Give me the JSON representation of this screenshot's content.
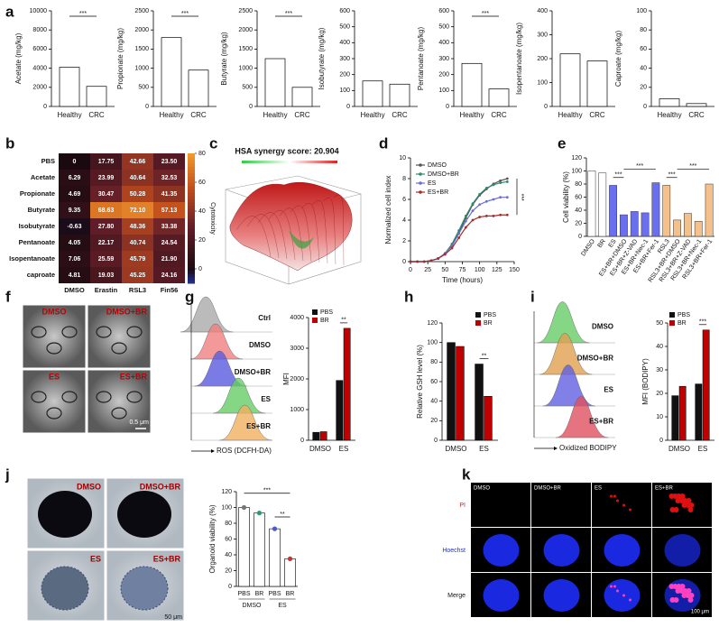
{
  "panel_labels": [
    "a",
    "b",
    "c",
    "d",
    "e",
    "f",
    "g",
    "h",
    "i",
    "j",
    "k"
  ],
  "a": {
    "groups": [
      "Healthy",
      "CRC"
    ],
    "colors": [
      "#111111",
      "#b22222"
    ],
    "plots": [
      {
        "ylabel": "Acetate (mg/kg)",
        "ylim": [
          0,
          10000
        ],
        "yticks": [
          0,
          2000,
          4000,
          6000,
          8000,
          10000
        ],
        "means": [
          4100,
          2100
        ],
        "sig": "***"
      },
      {
        "ylabel": "Propionate (mg/kg)",
        "ylim": [
          0,
          2500
        ],
        "yticks": [
          0,
          500,
          1000,
          1500,
          2000,
          2500
        ],
        "means": [
          1800,
          950
        ],
        "sig": "***"
      },
      {
        "ylabel": "Butyrate (mg/kg)",
        "ylim": [
          0,
          2500
        ],
        "yticks": [
          0,
          500,
          1000,
          1500,
          2000,
          2500
        ],
        "means": [
          1250,
          500
        ],
        "sig": "***"
      },
      {
        "ylabel": "Isobutyrate (mg/kg)",
        "ylim": [
          0,
          600
        ],
        "yticks": [
          0,
          100,
          200,
          300,
          400,
          500,
          600
        ],
        "means": [
          160,
          140
        ]
      },
      {
        "ylabel": "Pentanoate (mg/kg)",
        "ylim": [
          0,
          600
        ],
        "yticks": [
          0,
          100,
          200,
          300,
          400,
          500,
          600
        ],
        "means": [
          270,
          110
        ],
        "sig": "***"
      },
      {
        "ylabel": "Isopentanoate (mg/kg)",
        "ylim": [
          0,
          400
        ],
        "yticks": [
          0,
          100,
          200,
          300,
          400
        ],
        "means": [
          220,
          190
        ]
      },
      {
        "ylabel": "Caproate (mg/kg)",
        "ylim": [
          0,
          100
        ],
        "yticks": [
          0,
          20,
          40,
          60,
          80,
          100
        ],
        "means": [
          8,
          3
        ]
      }
    ]
  },
  "b": {
    "rows": [
      "PBS",
      "Acetate",
      "Propionate",
      "Butyrate",
      "Isobutyrate",
      "Pentanoate",
      "Isopentanoate",
      "caproate"
    ],
    "columns": [
      "DMSO",
      "Erastin",
      "RSL3",
      "Fin56"
    ],
    "values": [
      [
        "0",
        "17.75",
        "42.66",
        "23.50"
      ],
      [
        "6.29",
        "23.99",
        "40.64",
        "32.53"
      ],
      [
        "4.69",
        "30.47",
        "50.28",
        "41.35"
      ],
      [
        "9.35",
        "68.63",
        "72.10",
        "57.13"
      ],
      [
        "-0.63",
        "27.80",
        "48.36",
        "33.38"
      ],
      [
        "4.05",
        "22.17",
        "40.74",
        "24.54"
      ],
      [
        "7.06",
        "25.59",
        "45.79",
        "21.90"
      ],
      [
        "4.81",
        "19.03",
        "45.25",
        "24.16"
      ]
    ],
    "colorbar": {
      "label": "Cytotoxicity",
      "lim": [
        -10,
        80
      ],
      "ticks": [
        0,
        20,
        40,
        60,
        80
      ]
    }
  },
  "c": {
    "title": "HSA synergy score: 20.904"
  },
  "d": {
    "xlabel": "Time (hours)",
    "ylabel": "Normalized cell index",
    "xlim": [
      0,
      150
    ],
    "xticks": [
      0,
      25,
      50,
      75,
      100,
      125,
      150
    ],
    "ylim": [
      0,
      10
    ],
    "yticks": [
      0,
      2,
      4,
      6,
      8,
      10
    ],
    "x": [
      0,
      10,
      20,
      30,
      40,
      50,
      60,
      70,
      80,
      90,
      100,
      110,
      120,
      130,
      140
    ],
    "series": [
      {
        "name": "DMSO",
        "color": "#555555",
        "values": [
          0,
          0,
          0,
          0.1,
          0.3,
          0.8,
          1.6,
          2.8,
          4.2,
          5.5,
          6.4,
          7.0,
          7.5,
          7.8,
          8.0
        ]
      },
      {
        "name": "DMSO+BR",
        "color": "#2e8b6e",
        "values": [
          0,
          0,
          0,
          0.1,
          0.3,
          0.8,
          1.7,
          3.0,
          4.4,
          5.6,
          6.5,
          7.1,
          7.4,
          7.6,
          7.7
        ]
      },
      {
        "name": "ES",
        "color": "#6a6fd1",
        "values": [
          0,
          0,
          0,
          0.1,
          0.3,
          0.8,
          1.5,
          2.7,
          3.9,
          4.9,
          5.5,
          5.8,
          6.0,
          6.2,
          6.2
        ]
      },
      {
        "name": "ES+BR",
        "color": "#a52a2a",
        "values": [
          0,
          0,
          0,
          0.1,
          0.3,
          0.7,
          1.3,
          2.3,
          3.3,
          4.0,
          4.3,
          4.4,
          4.4,
          4.5,
          4.5
        ]
      }
    ],
    "sig": "***"
  },
  "e": {
    "ylabel": "Cell viability (%)",
    "ylim": [
      0,
      120
    ],
    "yticks": [
      0,
      20,
      40,
      60,
      80,
      100,
      120
    ],
    "categories": [
      "DMSO",
      "BR",
      "ES",
      "ES+BR+DMSO",
      "ES+BR+Z-VAD",
      "ES+BR+Nec-1",
      "ES+BR+Fer-1",
      "RSL3",
      "RSL3+BR+DMSO",
      "RSL3+BR+Z-VAD",
      "RSL3+BR+Nec-1",
      "RSL3+BR+Fer-1"
    ],
    "values": [
      100,
      97,
      78,
      33,
      38,
      36,
      82,
      78,
      25,
      35,
      23,
      80
    ],
    "colors": [
      "#ffffff",
      "#ffffff",
      "#6a6ff0",
      "#6a6ff0",
      "#6a6ff0",
      "#6a6ff0",
      "#6a6ff0",
      "#f5c08a",
      "#f5c08a",
      "#f5c08a",
      "#f5c08a",
      "#f5c08a"
    ],
    "sig": [
      "***",
      "***",
      "***",
      "***"
    ]
  },
  "f": {
    "labels": [
      "DMSO",
      "DMSO+BR",
      "ES",
      "ES+BR"
    ],
    "scale": "0.5 μm"
  },
  "g": {
    "hist_labels": [
      "Ctrl",
      "DMSO",
      "DMSO+BR",
      "ES",
      "ES+BR"
    ],
    "hist_colors": [
      "#aaaaaa",
      "#f08080",
      "#5a5ae0",
      "#66cc66",
      "#f0b060"
    ],
    "hist_xlabel": "ROS (DCFH-DA)",
    "bar": {
      "ylabel": "MFI",
      "ylim": [
        0,
        4000
      ],
      "yticks": [
        0,
        1000,
        2000,
        3000,
        4000
      ],
      "groups": [
        "DMSO",
        "ES"
      ],
      "series": [
        {
          "name": "PBS",
          "color": "#111111",
          "values": [
            260,
            1950
          ]
        },
        {
          "name": "BR",
          "color": "#c00000",
          "values": [
            280,
            3650
          ]
        }
      ],
      "sig": "**"
    }
  },
  "h": {
    "bar": {
      "ylabel": "Relative GSH level (%)",
      "ylim": [
        0,
        120
      ],
      "yticks": [
        0,
        20,
        40,
        60,
        80,
        100,
        120
      ],
      "groups": [
        "DMSO",
        "ES"
      ],
      "series": [
        {
          "name": "PBS",
          "color": "#111111",
          "values": [
            100,
            78
          ]
        },
        {
          "name": "BR",
          "color": "#c00000",
          "values": [
            96,
            45
          ]
        }
      ],
      "sig": "**"
    }
  },
  "i": {
    "hist_labels": [
      "DMSO",
      "DMSO+BR",
      "ES",
      "ES+BR"
    ],
    "hist_colors": [
      "#66cc66",
      "#e0a050",
      "#6060e0",
      "#e05060"
    ],
    "hist_xlabel": "Oxidized BODIPY",
    "bar": {
      "ylabel": "MFI (BODIPY)",
      "ylim": [
        0,
        50
      ],
      "yticks": [
        0,
        10,
        20,
        30,
        40,
        50
      ],
      "groups": [
        "DMSO",
        "ES"
      ],
      "series": [
        {
          "name": "PBS",
          "color": "#111111",
          "values": [
            19,
            24
          ]
        },
        {
          "name": "BR",
          "color": "#c00000",
          "values": [
            23,
            47
          ]
        }
      ],
      "sig": "***"
    }
  },
  "j": {
    "labels": [
      "DMSO",
      "DMSO+BR",
      "ES",
      "ES+BR"
    ],
    "scale": "50 μm",
    "bar": {
      "ylabel": "Organoid viability (%)",
      "ylim": [
        0,
        120
      ],
      "yticks": [
        0,
        20,
        40,
        60,
        80,
        100,
        120
      ],
      "categories": [
        "PBS",
        "BR",
        "PBS",
        "BR"
      ],
      "groups": [
        "DMSO",
        "ES"
      ],
      "values": [
        100,
        93,
        73,
        35
      ],
      "dot_colors": [
        "#777777",
        "#2e9b6e",
        "#4a5ad0",
        "#d03030"
      ],
      "sig": [
        "***",
        "**"
      ]
    }
  },
  "k": {
    "columns": [
      "DMSO",
      "DMSO+BR",
      "ES",
      "ES+BR"
    ],
    "rows": [
      "PI",
      "Hoechst",
      "Merge"
    ],
    "row_colors": [
      "#d02020",
      "#2030c0",
      "#111111"
    ],
    "scale": "100 μm"
  }
}
